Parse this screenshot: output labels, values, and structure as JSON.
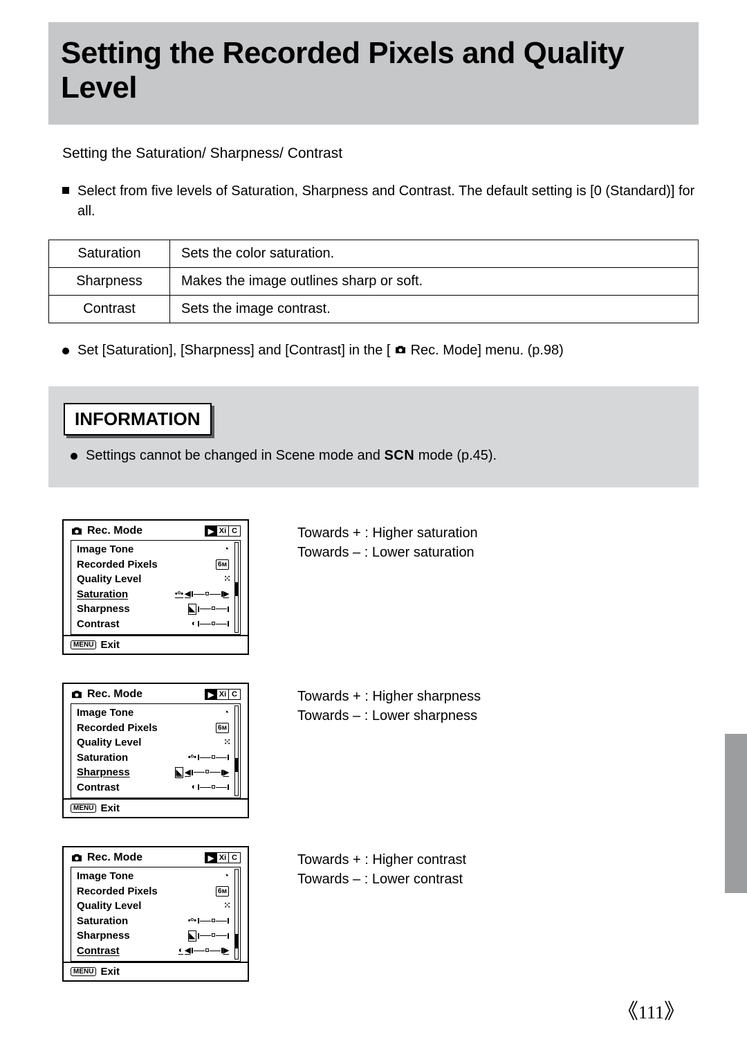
{
  "title": "Setting the Recorded Pixels and Quality Level",
  "subtitle": "Setting the Saturation/ Sharpness/ Contrast",
  "intro": "Select from five levels of Saturation, Sharpness and Contrast. The default setting is [0 (Standard)] for all.",
  "definitions": [
    {
      "label": "Saturation",
      "desc": "Sets the color saturation."
    },
    {
      "label": "Sharpness",
      "desc": "Makes the image outlines sharp or soft."
    },
    {
      "label": "Contrast",
      "desc": "Sets the image contrast."
    }
  ],
  "instruction_pre": "Set [Saturation], [Sharpness] and [Contrast] in the [",
  "instruction_post": " Rec. Mode] menu. (p.98)",
  "info_heading": "INFORMATION",
  "info_text_pre": "Settings cannot be changed in Scene mode and ",
  "info_scn": "SCN",
  "info_text_post": " mode (p.45).",
  "screens": [
    {
      "highlight": "Saturation",
      "caption_plus": "Towards + : Higher saturation",
      "caption_minus": "Towards – : Lower saturation"
    },
    {
      "highlight": "Sharpness",
      "caption_plus": "Towards + : Higher sharpness",
      "caption_minus": "Towards – : Lower sharpness"
    },
    {
      "highlight": "Contrast",
      "caption_plus": "Towards + : Higher contrast",
      "caption_minus": "Towards – : Lower contrast"
    }
  ],
  "lcd": {
    "header": "Rec. Mode",
    "tabs": [
      "▶",
      "Xi",
      "C"
    ],
    "items": [
      "Image Tone",
      "Recorded Pixels",
      "Quality Level",
      "Saturation",
      "Sharpness",
      "Contrast"
    ],
    "values": {
      "Image Tone": "icon-palette",
      "Recorded Pixels": "6M",
      "Quality Level": "icon-stars"
    },
    "menu_badge": "MENU",
    "exit": "Exit"
  },
  "page_number": "111"
}
